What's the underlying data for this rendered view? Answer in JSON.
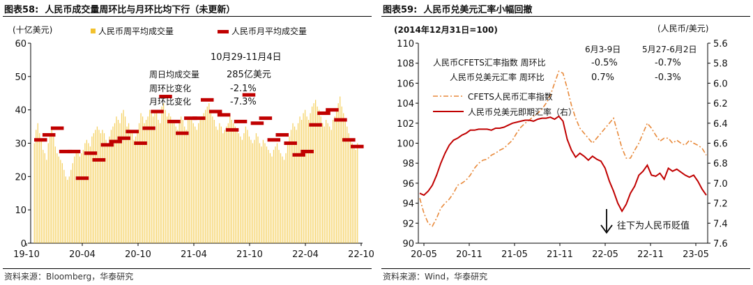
{
  "left": {
    "title_label": "图表58:",
    "title_text": "人民币成交量周环比与月环比均下行（未更新）",
    "source": "资料来源：Bloomberg，华泰研究",
    "chart_data": {
      "type": "bar",
      "unit_label": "(十亿美元)",
      "ylim": [
        0,
        60
      ],
      "y_ticks": [
        "0",
        "10",
        "20",
        "30",
        "40",
        "50",
        "60"
      ],
      "x_ticks": [
        "19-10",
        "20-04",
        "20-10",
        "21-04",
        "21-10",
        "22-04",
        "22-10"
      ],
      "grid": false,
      "legend_placement": "top",
      "series": [
        {
          "name": "人民币周平均成交量",
          "color": "#f2c12e",
          "kind": "weekly_bars",
          "values": [
            30,
            34,
            36,
            33,
            31,
            28,
            27,
            25,
            30,
            33,
            35,
            33,
            29,
            27,
            26,
            25,
            24,
            22,
            20,
            19,
            20,
            22,
            24,
            26,
            27,
            28,
            26,
            27,
            28,
            30,
            31,
            30,
            29,
            32,
            33,
            34,
            35,
            34,
            33,
            34,
            33,
            31,
            30,
            32,
            34,
            35,
            36,
            38,
            37,
            36,
            39,
            40,
            38,
            35,
            36,
            34,
            33,
            31,
            32,
            34,
            36,
            39,
            38,
            36,
            37,
            38,
            40,
            39,
            38,
            40,
            39,
            37,
            36,
            41,
            42,
            40,
            38,
            39,
            38,
            36,
            37,
            35,
            34,
            36,
            38,
            37,
            35,
            34,
            37,
            38,
            37,
            36,
            35,
            34,
            36,
            37,
            38,
            39,
            40,
            41,
            42,
            40,
            38,
            37,
            35,
            34,
            36,
            35,
            33,
            34,
            35,
            36,
            38,
            37,
            36,
            35,
            34,
            33,
            32,
            31,
            33,
            35,
            34,
            32,
            31,
            30,
            31,
            33,
            32,
            30,
            29,
            31,
            30,
            29,
            28,
            27,
            26,
            28,
            29,
            30,
            28,
            27,
            26,
            25,
            27,
            30,
            32,
            34,
            36,
            35,
            34,
            36,
            38,
            37,
            39,
            40,
            38,
            37,
            39,
            41,
            42,
            43,
            41,
            40,
            38,
            36,
            35,
            37,
            36,
            35,
            34,
            37,
            38,
            40,
            42,
            44,
            41,
            39,
            37,
            35,
            33,
            31,
            30,
            29,
            28,
            30
          ]
        },
        {
          "name": "人民币月平均成交量",
          "color": "#c00000",
          "kind": "monthly_dashes",
          "values": [
            31,
            32.5,
            34.5,
            27.5,
            27.5,
            19.5,
            27,
            25,
            29.5,
            30.5,
            31.5,
            33.5,
            30,
            34.5,
            39.5,
            44,
            36.5,
            33,
            37.5,
            37.5,
            43,
            39.5,
            38.5,
            34,
            36.5,
            44.5,
            36,
            37.5,
            31,
            32.5,
            30,
            26.5,
            27.5,
            35.5,
            39,
            40,
            37,
            31,
            29
          ]
        }
      ],
      "annotation": {
        "date": "10月29-11月4日",
        "rows": [
          {
            "label": "周日均成交量",
            "value": "285亿美元"
          },
          {
            "label": "周环比变化",
            "value": "-2.1%"
          },
          {
            "label": "月环比变化",
            "value": "-7.3%"
          }
        ]
      }
    }
  },
  "right": {
    "title_label": "图表59:",
    "title_text": "人民币兑美元汇率小幅回撤",
    "source": "资料来源：Wind，华泰研究",
    "chart_data": {
      "type": "line",
      "base_note": "(2014年12月31日=100)",
      "right_unit": "(人民币/美元)",
      "left_axis": {
        "ylim": [
          90,
          110
        ],
        "ticks": [
          "90",
          "92",
          "94",
          "96",
          "98",
          "100",
          "102",
          "104",
          "106",
          "108",
          "110"
        ]
      },
      "right_axis": {
        "ylim": [
          7.6,
          5.6
        ],
        "inverted": true,
        "ticks": [
          "5.6",
          "5.8",
          "6.0",
          "6.2",
          "6.4",
          "6.6",
          "6.8",
          "7.0",
          "7.2",
          "7.4",
          "7.6"
        ]
      },
      "x_ticks": [
        "20-05",
        "20-11",
        "21-05",
        "21-11",
        "22-05",
        "22-11",
        "23-05"
      ],
      "grid": false,
      "legend_placement": "upper-left",
      "series": [
        {
          "name": "CFETS人民币汇率指数",
          "color": "#e8893a",
          "style": "dash-dot",
          "axis": "left",
          "x": [
            0,
            2,
            4,
            6,
            8,
            10,
            12,
            14,
            16,
            18,
            20,
            22,
            24,
            26,
            28,
            30,
            32,
            34,
            36,
            38,
            40,
            42,
            44,
            46,
            48,
            50,
            52,
            54,
            56,
            58,
            60,
            62,
            64,
            66,
            68,
            70,
            72,
            74,
            76,
            78,
            80,
            82,
            84,
            86,
            88,
            90,
            92,
            94,
            96,
            98,
            100,
            102,
            104,
            106,
            108,
            110,
            112,
            114,
            116,
            118,
            120,
            122,
            124,
            126,
            128,
            130,
            132,
            134,
            136
          ],
          "values": [
            94.5,
            93.0,
            92.0,
            91.7,
            92.5,
            93.5,
            94.0,
            94.4,
            95.0,
            95.8,
            96.0,
            96.3,
            96.8,
            97.5,
            98.0,
            98.3,
            98.4,
            98.8,
            99.0,
            99.3,
            99.5,
            99.9,
            100.3,
            101.0,
            101.6,
            102.0,
            102.3,
            102.7,
            103.0,
            103.4,
            104.0,
            104.8,
            106.0,
            107.2,
            107.0,
            105.5,
            103.8,
            102.5,
            101.5,
            101.0,
            100.5,
            100.0,
            100.5,
            101.0,
            101.5,
            102.0,
            102.5,
            101.0,
            99.5,
            98.5,
            98.5,
            99.3,
            100.0,
            101.0,
            102.0,
            101.5,
            100.8,
            100.2,
            100.5,
            100.5,
            100.0,
            100.3,
            100.0,
            99.8,
            100.3,
            100.0,
            99.8,
            99.5,
            98.8
          ]
        },
        {
          "name": "人民币兑美元即期汇率（右）",
          "color": "#c00000",
          "style": "solid",
          "axis": "right",
          "x": [
            0,
            2,
            4,
            6,
            8,
            10,
            12,
            14,
            16,
            18,
            20,
            22,
            24,
            26,
            28,
            30,
            32,
            34,
            36,
            38,
            40,
            42,
            44,
            46,
            48,
            50,
            52,
            54,
            56,
            58,
            60,
            62,
            64,
            66,
            68,
            70,
            72,
            74,
            76,
            78,
            80,
            82,
            84,
            86,
            88,
            90,
            92,
            94,
            96,
            98,
            100,
            102,
            104,
            106,
            108,
            110,
            112,
            114,
            116,
            118,
            120,
            122,
            124,
            126,
            128,
            130,
            132,
            134,
            136
          ],
          "values": [
            7.1,
            7.12,
            7.08,
            7.02,
            6.92,
            6.8,
            6.7,
            6.62,
            6.57,
            6.55,
            6.52,
            6.5,
            6.47,
            6.47,
            6.46,
            6.46,
            6.46,
            6.47,
            6.45,
            6.45,
            6.44,
            6.42,
            6.4,
            6.39,
            6.38,
            6.37,
            6.37,
            6.38,
            6.36,
            6.35,
            6.35,
            6.34,
            6.36,
            6.33,
            6.38,
            6.56,
            6.67,
            6.74,
            6.7,
            6.73,
            6.77,
            6.73,
            6.76,
            6.78,
            6.85,
            6.98,
            7.08,
            7.2,
            7.28,
            7.21,
            7.1,
            7.03,
            6.92,
            6.88,
            6.82,
            6.92,
            6.93,
            6.9,
            6.96,
            6.85,
            6.88,
            6.86,
            6.89,
            6.92,
            6.94,
            6.92,
            6.98,
            7.06,
            7.12
          ]
        }
      ],
      "annotation": {
        "col_headers": [
          "6月3-9日",
          "5月27-6月2日"
        ],
        "rows": [
          {
            "label": "人民币CFETS汇率指数 周环比",
            "values": [
              "-0.5%",
              "-0.7%"
            ]
          },
          {
            "label": "人民币兑美元汇率    周环比",
            "values": [
              "0.7%",
              "-0.3%"
            ]
          }
        ]
      },
      "arrow_note": "往下为人民币贬值"
    }
  }
}
